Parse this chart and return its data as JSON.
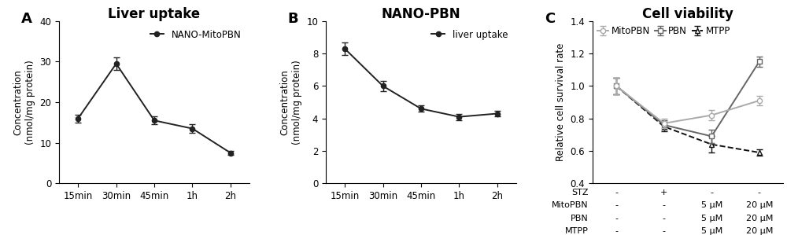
{
  "panelA": {
    "title": "Liver uptake",
    "xlabel_ticks": [
      "15min",
      "30min",
      "45min",
      "1h",
      "2h"
    ],
    "ylabel": "Concentration\n(nmol/mg protein)",
    "ylim": [
      0,
      40
    ],
    "yticks": [
      0,
      10,
      20,
      30,
      40
    ],
    "values": [
      16.0,
      29.5,
      15.5,
      13.5,
      7.5
    ],
    "errors": [
      1.0,
      1.5,
      1.0,
      1.0,
      0.5
    ],
    "legend_label": "NANO-MitoPBN",
    "color": "#222222"
  },
  "panelB": {
    "title": "NANO-PBN",
    "xlabel_ticks": [
      "15min",
      "30min",
      "45min",
      "1h",
      "2h"
    ],
    "ylabel": "Concentration\n(nmol/mg protein)",
    "ylim": [
      0,
      10
    ],
    "yticks": [
      0,
      2,
      4,
      6,
      8,
      10
    ],
    "values": [
      8.3,
      6.0,
      4.6,
      4.1,
      4.3
    ],
    "errors": [
      0.4,
      0.3,
      0.2,
      0.2,
      0.15
    ],
    "legend_label": "liver uptake",
    "color": "#222222"
  },
  "panelC": {
    "title": "Cell viability",
    "ylabel": "Relative cell survival rate",
    "ylim": [
      0.4,
      1.4
    ],
    "yticks": [
      0.4,
      0.6,
      0.8,
      1.0,
      1.2,
      1.4
    ],
    "MitoPBN_values": [
      1.0,
      0.77,
      0.82,
      0.91
    ],
    "MitoPBN_errors": [
      0.05,
      0.03,
      0.03,
      0.03
    ],
    "PBN_values": [
      1.0,
      0.76,
      0.69,
      1.15
    ],
    "PBN_errors": [
      0.05,
      0.03,
      0.04,
      0.03
    ],
    "MTPP_values": [
      1.0,
      0.75,
      0.64,
      0.59
    ],
    "MTPP_errors": [
      0.05,
      0.03,
      0.05,
      0.02
    ],
    "MitoPBN_color": "#aaaaaa",
    "PBN_color": "#666666",
    "MTPP_color": "#111111",
    "row_labels": [
      "STZ",
      "MitoPBN",
      "PBN",
      "MTPP"
    ],
    "col0": [
      "-",
      "-",
      "-",
      "-"
    ],
    "col1": [
      "+",
      "-",
      "-",
      "-"
    ],
    "col2": [
      "-",
      "5 μM",
      "5 μM",
      "5 μM"
    ],
    "col3": [
      "-",
      "20 μM",
      "20 μM",
      "20 μM"
    ]
  },
  "bg_color": "#ffffff",
  "panel_label_fontsize": 13,
  "title_fontsize": 12,
  "tick_fontsize": 8.5,
  "legend_fontsize": 8.5,
  "ylabel_fontsize": 8.5,
  "table_fontsize": 8
}
